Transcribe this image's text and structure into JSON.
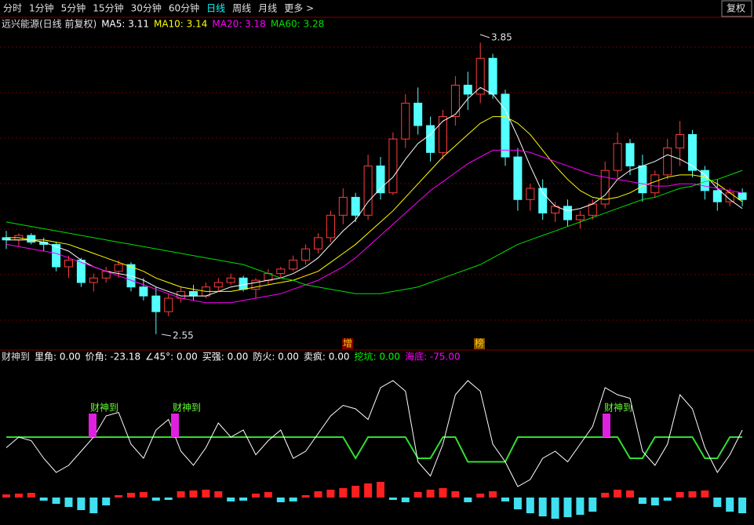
{
  "toolbar": {
    "tabs": [
      "分时",
      "1分钟",
      "5分钟",
      "15分钟",
      "30分钟",
      "60分钟",
      "日线",
      "周线",
      "月线",
      "更多 >"
    ],
    "active": "日线",
    "right_button": "复权"
  },
  "chart_data": {
    "type": "candlestick",
    "title": "远兴能源(日线 前复权)",
    "ylim": [
      2.5,
      3.9
    ],
    "ohlc": [
      [
        2.98,
        3.01,
        2.93,
        2.97
      ],
      [
        2.97,
        3.0,
        2.94,
        2.99
      ],
      [
        2.99,
        3.0,
        2.95,
        2.96
      ],
      [
        2.96,
        2.98,
        2.92,
        2.95
      ],
      [
        2.95,
        2.96,
        2.83,
        2.85
      ],
      [
        2.85,
        2.9,
        2.8,
        2.88
      ],
      [
        2.88,
        2.89,
        2.76,
        2.78
      ],
      [
        2.78,
        2.82,
        2.74,
        2.8
      ],
      [
        2.8,
        2.85,
        2.78,
        2.83
      ],
      [
        2.83,
        2.88,
        2.8,
        2.86
      ],
      [
        2.86,
        2.87,
        2.74,
        2.76
      ],
      [
        2.76,
        2.8,
        2.7,
        2.72
      ],
      [
        2.72,
        2.76,
        2.55,
        2.65
      ],
      [
        2.65,
        2.73,
        2.63,
        2.71
      ],
      [
        2.71,
        2.76,
        2.69,
        2.74
      ],
      [
        2.74,
        2.77,
        2.7,
        2.72
      ],
      [
        2.72,
        2.78,
        2.71,
        2.76
      ],
      [
        2.76,
        2.8,
        2.74,
        2.78
      ],
      [
        2.78,
        2.82,
        2.77,
        2.8
      ],
      [
        2.8,
        2.81,
        2.74,
        2.75
      ],
      [
        2.75,
        2.8,
        2.71,
        2.79
      ],
      [
        2.79,
        2.84,
        2.77,
        2.82
      ],
      [
        2.82,
        2.85,
        2.8,
        2.84
      ],
      [
        2.84,
        2.9,
        2.83,
        2.88
      ],
      [
        2.88,
        2.95,
        2.86,
        2.93
      ],
      [
        2.93,
        3.0,
        2.91,
        2.98
      ],
      [
        2.98,
        3.1,
        2.96,
        3.08
      ],
      [
        3.08,
        3.2,
        3.04,
        3.16
      ],
      [
        3.16,
        3.18,
        3.05,
        3.08
      ],
      [
        3.08,
        3.35,
        3.06,
        3.3
      ],
      [
        3.3,
        3.34,
        3.15,
        3.18
      ],
      [
        3.18,
        3.45,
        3.17,
        3.42
      ],
      [
        3.42,
        3.62,
        3.38,
        3.58
      ],
      [
        3.58,
        3.65,
        3.44,
        3.48
      ],
      [
        3.48,
        3.52,
        3.32,
        3.36
      ],
      [
        3.36,
        3.55,
        3.33,
        3.52
      ],
      [
        3.52,
        3.7,
        3.48,
        3.66
      ],
      [
        3.66,
        3.72,
        3.55,
        3.62
      ],
      [
        3.62,
        3.85,
        3.58,
        3.78
      ],
      [
        3.78,
        3.8,
        3.6,
        3.62
      ],
      [
        3.62,
        3.64,
        3.3,
        3.34
      ],
      [
        3.34,
        3.38,
        3.1,
        3.15
      ],
      [
        3.15,
        3.22,
        3.1,
        3.2
      ],
      [
        3.2,
        3.24,
        3.06,
        3.09
      ],
      [
        3.09,
        3.14,
        3.05,
        3.12
      ],
      [
        3.12,
        3.15,
        3.03,
        3.06
      ],
      [
        3.06,
        3.1,
        3.02,
        3.08
      ],
      [
        3.08,
        3.15,
        3.06,
        3.13
      ],
      [
        3.13,
        3.32,
        3.11,
        3.28
      ],
      [
        3.28,
        3.45,
        3.24,
        3.4
      ],
      [
        3.4,
        3.42,
        3.26,
        3.3
      ],
      [
        3.3,
        3.35,
        3.14,
        3.18
      ],
      [
        3.18,
        3.28,
        3.16,
        3.26
      ],
      [
        3.26,
        3.42,
        3.24,
        3.38
      ],
      [
        3.38,
        3.5,
        3.3,
        3.44
      ],
      [
        3.44,
        3.46,
        3.25,
        3.28
      ],
      [
        3.28,
        3.3,
        3.15,
        3.19
      ],
      [
        3.19,
        3.24,
        3.1,
        3.14
      ],
      [
        3.14,
        3.2,
        3.12,
        3.18
      ],
      [
        3.18,
        3.2,
        3.12,
        3.15
      ]
    ],
    "series": [
      {
        "name": "MA5",
        "label": "MA5: 3.11",
        "color": "#ffffff",
        "values": [
          2.97,
          2.97,
          2.97,
          2.96,
          2.94,
          2.92,
          2.88,
          2.85,
          2.83,
          2.82,
          2.81,
          2.79,
          2.76,
          2.74,
          2.72,
          2.72,
          2.72,
          2.74,
          2.76,
          2.77,
          2.78,
          2.79,
          2.8,
          2.82,
          2.85,
          2.89,
          2.95,
          3.01,
          3.06,
          3.14,
          3.2,
          3.25,
          3.33,
          3.4,
          3.44,
          3.5,
          3.53,
          3.6,
          3.65,
          3.62,
          3.55,
          3.43,
          3.3,
          3.18,
          3.12,
          3.1,
          3.11,
          3.13,
          3.17,
          3.24,
          3.28,
          3.3,
          3.32,
          3.35,
          3.33,
          3.3,
          3.26,
          3.2,
          3.15,
          3.11
        ]
      },
      {
        "name": "MA10",
        "label": "MA10: 3.14",
        "color": "#ffff00",
        "values": [
          2.98,
          2.98,
          2.97,
          2.97,
          2.96,
          2.95,
          2.93,
          2.91,
          2.89,
          2.87,
          2.85,
          2.83,
          2.8,
          2.78,
          2.76,
          2.75,
          2.74,
          2.74,
          2.74,
          2.75,
          2.76,
          2.77,
          2.78,
          2.79,
          2.81,
          2.83,
          2.87,
          2.91,
          2.95,
          3.0,
          3.05,
          3.1,
          3.16,
          3.22,
          3.28,
          3.34,
          3.39,
          3.44,
          3.49,
          3.52,
          3.52,
          3.49,
          3.44,
          3.37,
          3.3,
          3.24,
          3.19,
          3.16,
          3.15,
          3.16,
          3.18,
          3.21,
          3.23,
          3.25,
          3.26,
          3.26,
          3.25,
          3.22,
          3.18,
          3.14
        ]
      },
      {
        "name": "MA20",
        "label": "MA20: 3.18",
        "color": "#ff00ff",
        "values": [
          2.95,
          2.94,
          2.93,
          2.92,
          2.91,
          2.89,
          2.87,
          2.85,
          2.83,
          2.81,
          2.79,
          2.77,
          2.75,
          2.73,
          2.71,
          2.7,
          2.69,
          2.69,
          2.69,
          2.7,
          2.71,
          2.72,
          2.73,
          2.75,
          2.77,
          2.79,
          2.82,
          2.85,
          2.89,
          2.94,
          2.99,
          3.04,
          3.09,
          3.14,
          3.19,
          3.23,
          3.27,
          3.31,
          3.34,
          3.37,
          3.37,
          3.37,
          3.36,
          3.34,
          3.32,
          3.3,
          3.28,
          3.26,
          3.25,
          3.24,
          3.23,
          3.22,
          3.21,
          3.21,
          3.22,
          3.22,
          3.21,
          3.2,
          3.19,
          3.18
        ]
      },
      {
        "name": "MA60",
        "label": "MA60: 3.28",
        "color": "#00e000",
        "values": [
          3.05,
          3.04,
          3.03,
          3.02,
          3.01,
          3.0,
          2.99,
          2.98,
          2.97,
          2.96,
          2.95,
          2.94,
          2.93,
          2.92,
          2.91,
          2.9,
          2.89,
          2.88,
          2.87,
          2.86,
          2.84,
          2.82,
          2.8,
          2.79,
          2.77,
          2.76,
          2.75,
          2.74,
          2.73,
          2.73,
          2.73,
          2.74,
          2.75,
          2.76,
          2.78,
          2.8,
          2.82,
          2.84,
          2.86,
          2.89,
          2.92,
          2.95,
          2.97,
          2.99,
          3.01,
          3.03,
          3.05,
          3.07,
          3.09,
          3.11,
          3.13,
          3.15,
          3.16,
          3.18,
          3.2,
          3.21,
          3.23,
          3.24,
          3.26,
          3.28
        ]
      }
    ],
    "annotations": {
      "high": "3.85",
      "low": "2.55",
      "marker1": "增",
      "marker2": "榜"
    }
  },
  "indicator": {
    "title": "财神到",
    "items": [
      {
        "text": "里角: 0.00",
        "color": "#ffffff"
      },
      {
        "text": "价角: -23.18",
        "color": "#ffffff"
      },
      {
        "text": "∠45°: 0.00",
        "color": "#ffffff"
      },
      {
        "text": "买强: 0.00",
        "color": "#ffffff"
      },
      {
        "text": "防火: 0.00",
        "color": "#ffffff"
      },
      {
        "text": "卖疯: 0.00",
        "color": "#ffffff"
      },
      {
        "text": "挖坑: 0.00",
        "color": "#00ff00"
      },
      {
        "text": "海底: -75.00",
        "color": "#ff00ff"
      }
    ],
    "ylim": [
      -100,
      100
    ],
    "line": [
      -15,
      0,
      -5,
      -30,
      -50,
      -40,
      -20,
      0,
      30,
      35,
      -10,
      -30,
      10,
      25,
      -20,
      -40,
      -15,
      20,
      0,
      10,
      -25,
      -5,
      10,
      -30,
      -20,
      5,
      30,
      45,
      40,
      25,
      70,
      80,
      65,
      -35,
      -55,
      -10,
      60,
      80,
      65,
      -10,
      -35,
      -70,
      -60,
      -30,
      -20,
      -35,
      -10,
      15,
      70,
      60,
      55,
      -20,
      -40,
      -10,
      60,
      40,
      -15,
      -50,
      -25,
      10
    ],
    "green": [
      0,
      0,
      0,
      0,
      0,
      0,
      0,
      0,
      0,
      0,
      0,
      0,
      0,
      0,
      0,
      0,
      0,
      0,
      0,
      0,
      0,
      0,
      0,
      0,
      0,
      0,
      0,
      0,
      -30,
      0,
      0,
      0,
      0,
      -30,
      -30,
      0,
      0,
      -35,
      -35,
      -35,
      -35,
      0,
      0,
      0,
      0,
      0,
      0,
      0,
      0,
      0,
      -30,
      -30,
      0,
      0,
      0,
      0,
      -30,
      -30,
      0,
      0
    ],
    "hist_ylim": [
      -35,
      35
    ],
    "histogram": [
      4,
      5,
      6,
      -4,
      -8,
      -12,
      -16,
      -20,
      -10,
      3,
      6,
      7,
      -4,
      -3,
      8,
      9,
      10,
      8,
      -5,
      -4,
      5,
      7,
      -6,
      -5,
      3,
      8,
      10,
      12,
      15,
      18,
      20,
      -3,
      -6,
      7,
      10,
      12,
      8,
      -6,
      5,
      8,
      -5,
      -15,
      -20,
      -24,
      -27,
      -25,
      -22,
      -18,
      6,
      10,
      9,
      -8,
      -10,
      -4,
      7,
      8,
      9,
      -12,
      -18,
      -20
    ],
    "signals": [
      "财神到",
      "财神到",
      "财神到"
    ]
  }
}
